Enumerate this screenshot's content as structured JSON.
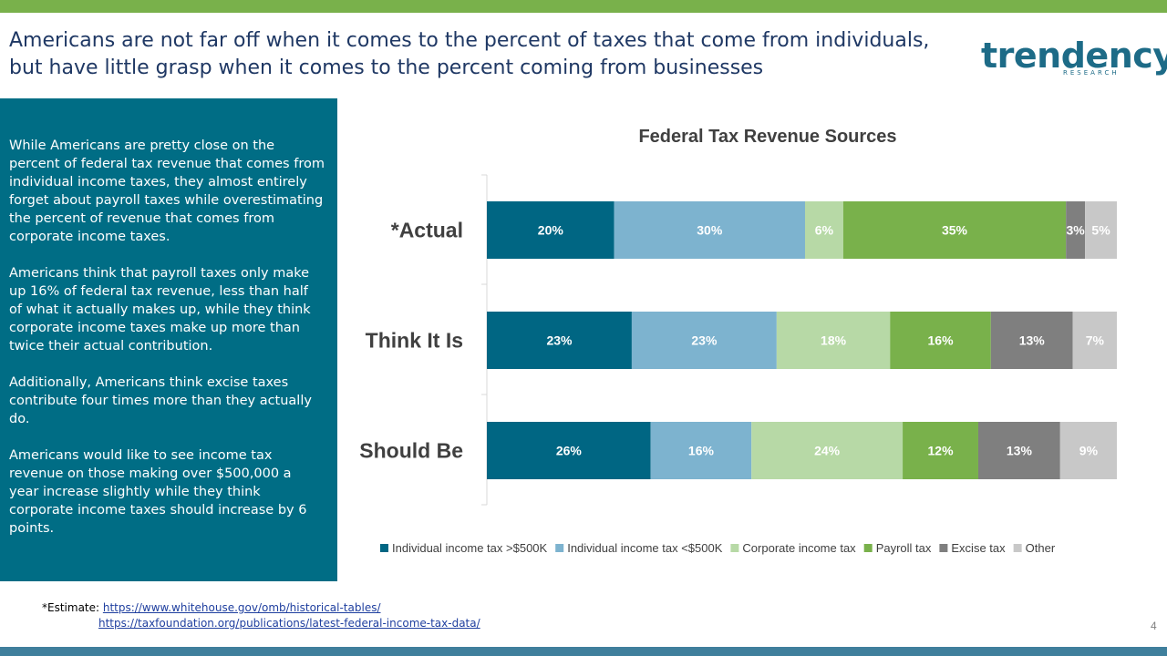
{
  "title_line1": "Americans are not far off when it comes to the percent of taxes that come from individuals,",
  "title_line2": "but have little grasp when it comes to the percent coming from businesses",
  "logo": {
    "word": "trendency",
    "sub": "RESEARCH"
  },
  "sidebar": {
    "paragraphs": [
      "While Americans are pretty close on the percent of federal tax revenue that comes from individual income taxes, they almost entirely forget about payroll taxes while overestimating the percent of revenue that comes from corporate income taxes.",
      "Americans think that payroll taxes only make up 16% of federal tax revenue, less than half of what it actually makes up, while they think corporate income taxes make up more than twice their actual contribution.",
      "Additionally, Americans think excise taxes contribute four times more than they actually do.",
      "Americans would like to see income tax revenue on those making over $500,000 a year increase slightly while they think corporate income taxes should increase by 6 points."
    ]
  },
  "chart_data": {
    "type": "bar",
    "orientation": "horizontal",
    "stacked": true,
    "title": "Federal Tax Revenue Sources",
    "categories": [
      "*Actual",
      "Think It Is",
      "Should Be"
    ],
    "series": [
      {
        "name": "Individual income tax >$500K",
        "color": "#006683",
        "values": [
          20,
          23,
          26
        ]
      },
      {
        "name": "Individual income tax <$500K",
        "color": "#7db3cf",
        "values": [
          30,
          23,
          16
        ]
      },
      {
        "name": "Corporate income tax",
        "color": "#b7d9a6",
        "values": [
          6,
          18,
          24
        ]
      },
      {
        "name": "Payroll tax",
        "color": "#79b14b",
        "values": [
          35,
          16,
          12
        ]
      },
      {
        "name": "Excise tax",
        "color": "#7f7f7f",
        "values": [
          3,
          13,
          13
        ]
      },
      {
        "name": "Other",
        "color": "#c8c8c8",
        "values": [
          5,
          7,
          9
        ]
      }
    ],
    "value_suffix": "%",
    "legend_position": "bottom"
  },
  "footnote": {
    "label": "*Estimate:",
    "link1": "https://www.whitehouse.gov/omb/historical-tables/",
    "link2": "https://taxfoundation.org/publications/latest-federal-income-tax-data/"
  },
  "page_number": "4"
}
